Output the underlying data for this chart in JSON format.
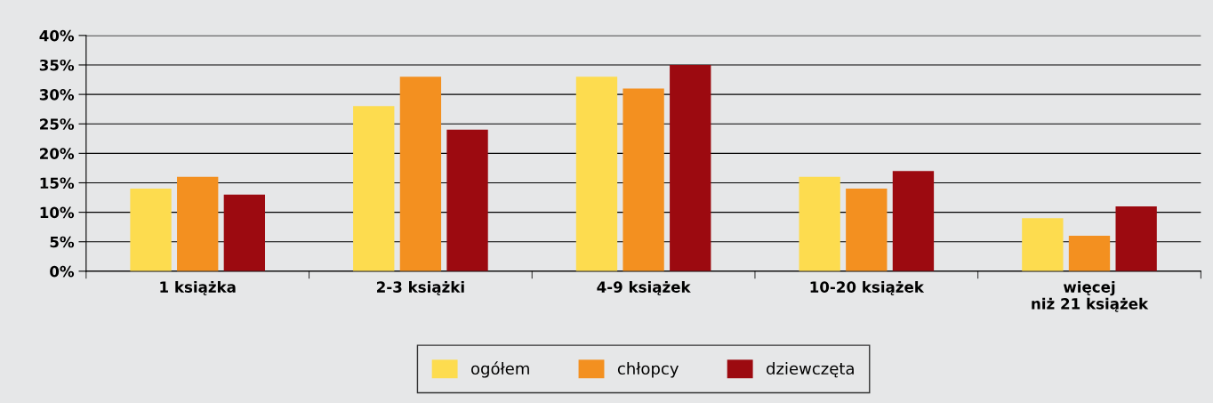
{
  "chart_data": {
    "type": "bar",
    "categories": [
      "1 książka",
      "2-3 książki",
      "4-9 książek",
      "10-20 książek",
      "więcej\nniż 21 książek"
    ],
    "series": [
      {
        "name": "ogółem",
        "color": "#fddc4f",
        "values": [
          14,
          28,
          33,
          16,
          9
        ]
      },
      {
        "name": "chłopcy",
        "color": "#f39020",
        "values": [
          16,
          33,
          31,
          14,
          6
        ]
      },
      {
        "name": "dziewczęta",
        "color": "#9c0a10",
        "values": [
          13,
          24,
          35,
          17,
          11
        ]
      }
    ],
    "ylim": [
      0,
      40
    ],
    "yticks": [
      {
        "value": 0,
        "label": "0%"
      },
      {
        "value": 5,
        "label": "5%"
      },
      {
        "value": 10,
        "label": "10%"
      },
      {
        "value": 15,
        "label": "15%"
      },
      {
        "value": 20,
        "label": "20%"
      },
      {
        "value": 25,
        "label": "25%"
      },
      {
        "value": 30,
        "label": "30%"
      },
      {
        "value": 35,
        "label": "35%"
      },
      {
        "value": 40,
        "label": "40%"
      }
    ],
    "grid": "y",
    "legend": "bottom"
  }
}
